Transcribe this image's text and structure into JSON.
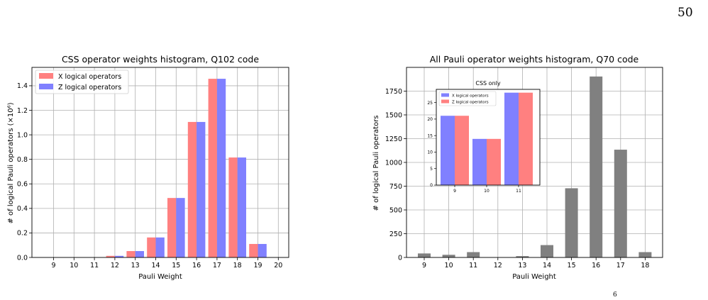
{
  "page": {
    "number": "50",
    "footer_mark": "6"
  },
  "colors": {
    "x_series": "#ff8080",
    "z_series": "#8080ff",
    "all_series": "#808080",
    "grid": "#b0b0b0"
  },
  "chart_data": [
    {
      "type": "bar",
      "title": "CSS operator weights histogram, Q102 code",
      "xlabel": "Pauli Weight",
      "ylabel": "# of logical Pauli operators (×10⁶)",
      "categories": [
        "9",
        "10",
        "11",
        "12",
        "13",
        "14",
        "15",
        "16",
        "17",
        "18",
        "19",
        "20"
      ],
      "ylim": [
        0,
        1.55
      ],
      "yticks": [
        "0.0",
        "0.2",
        "0.4",
        "0.6",
        "0.8",
        "1.0",
        "1.2",
        "1.4"
      ],
      "grid": true,
      "legend_position": "top-left",
      "series": [
        {
          "name": "X logical operators",
          "values": [
            0,
            0,
            0,
            0.013,
            0.052,
            0.163,
            0.485,
            1.105,
            1.457,
            0.815,
            0.11,
            0
          ]
        },
        {
          "name": "Z logical operators",
          "values": [
            0,
            0,
            0,
            0.013,
            0.052,
            0.163,
            0.485,
            1.105,
            1.457,
            0.815,
            0.11,
            0
          ]
        }
      ]
    },
    {
      "type": "bar",
      "title": "All Pauli operator weights histogram, Q70 code",
      "xlabel": "Pauli Weight",
      "ylabel": "# of logical Pauli operators",
      "categories": [
        "9",
        "10",
        "11",
        "12",
        "13",
        "14",
        "15",
        "16",
        "17",
        "18"
      ],
      "ylim": [
        0,
        2000
      ],
      "yticks": [
        "0",
        "250",
        "500",
        "750",
        "1000",
        "1250",
        "1500",
        "1750"
      ],
      "grid": true,
      "values": [
        42,
        28,
        56,
        0,
        14,
        130,
        728,
        1904,
        1134,
        56
      ],
      "inset": {
        "type": "bar",
        "title": "CSS only",
        "categories": [
          "9",
          "10",
          "11"
        ],
        "ylim": [
          0,
          29
        ],
        "yticks": [
          "0",
          "5",
          "10",
          "15",
          "20",
          "25"
        ],
        "legend_position": "top-left",
        "series": [
          {
            "name": "X logical operators",
            "values": [
              21,
              14,
              28
            ]
          },
          {
            "name": "Z logical operators",
            "values": [
              21,
              14,
              28
            ]
          }
        ]
      }
    }
  ]
}
